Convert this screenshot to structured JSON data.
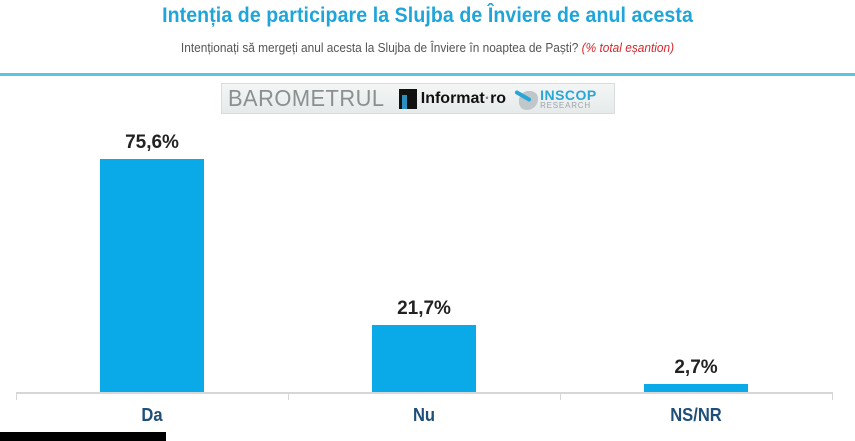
{
  "header": {
    "title": "Intenția de participare la Slujba de Înviere de anul acesta",
    "subtitle": "Intenționați să mergeți anul acesta la Slujba de Înviere în noaptea de Paști?",
    "subtitle_note": "(% total eșantion)"
  },
  "logos": {
    "barometru": "BAROMETRUL",
    "informat_name": "Informat",
    "informat_dot": "·",
    "informat_tld": "ro",
    "inscop_top": "INSCOP",
    "inscop_bottom": "RESEARCH"
  },
  "colors": {
    "title": "#1fa5d9",
    "bar": "#0aa9e7",
    "rule": "#5bc3e3",
    "note": "#d9262c",
    "category": "#1f4e79"
  },
  "chart_data": {
    "type": "bar",
    "title": "Intenția de participare la Slujba de Înviere de anul acesta",
    "subtitle": "Intenționați să mergeți anul acesta la Slujba de Înviere în noaptea de Paști? (% total eșantion)",
    "categories": [
      "Da",
      "Nu",
      "NS/NR"
    ],
    "values": [
      75.6,
      21.7,
      2.7
    ],
    "value_labels": [
      "75,6%",
      "21,7%",
      "2,7%"
    ],
    "xlabel": "",
    "ylabel": "",
    "ylim": [
      0,
      80
    ],
    "grid": false,
    "legend": "none",
    "unit": "%"
  }
}
